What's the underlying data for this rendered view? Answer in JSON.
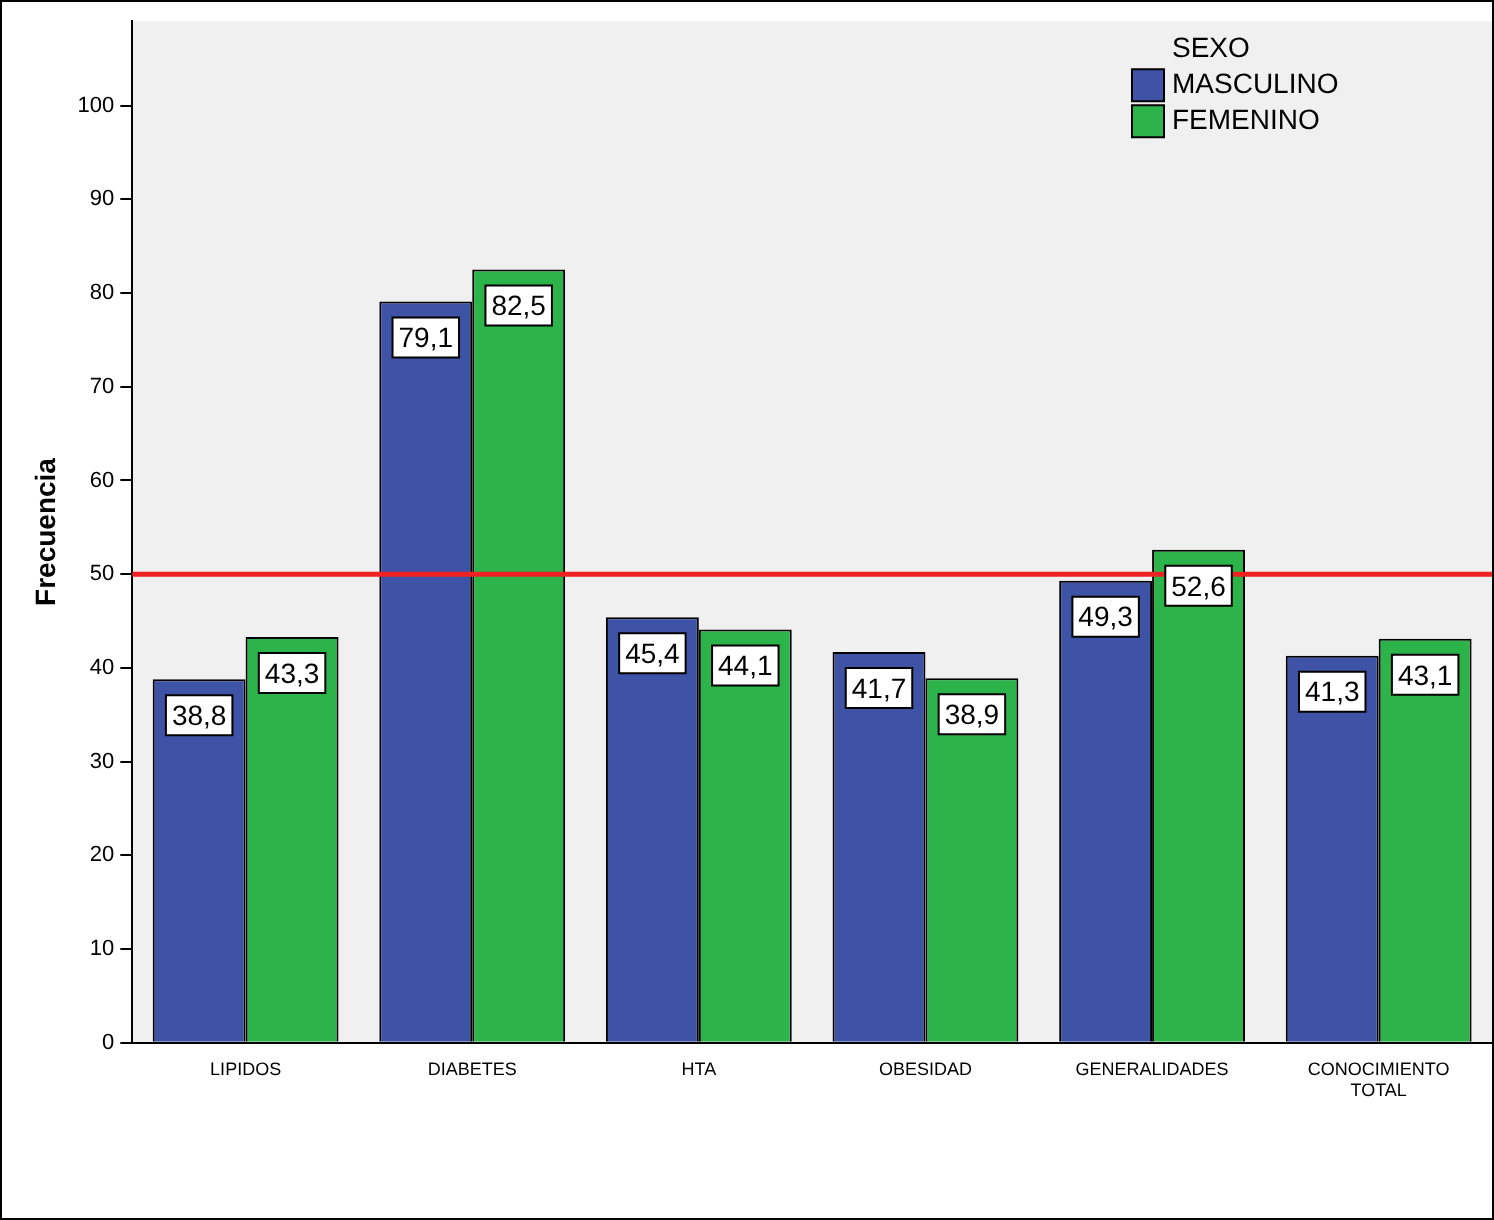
{
  "chart_data": {
    "type": "bar",
    "ylabel": "Frecuencia",
    "legend_title": "SEXO",
    "legend": "top right",
    "grid": false,
    "categories": [
      "LIPIDOS",
      "DIABETES",
      "HTA",
      "OBESIDAD",
      "GENERALIDADES",
      "CONOCIMIENTO TOTAL"
    ],
    "series": [
      {
        "name": "MASCULINO",
        "color": "#3e53a6",
        "values": [
          38.8,
          79.1,
          45.4,
          41.7,
          49.3,
          41.3
        ],
        "value_labels": [
          "38,8",
          "79,1",
          "45,4",
          "41,7",
          "49,3",
          "41,3"
        ]
      },
      {
        "name": "FEMENINO",
        "color": "#2cb34a",
        "values": [
          43.3,
          82.5,
          44.1,
          38.9,
          52.6,
          43.1
        ],
        "value_labels": [
          "43,3",
          "82,5",
          "44,1",
          "38,9",
          "52,6",
          "43,1"
        ]
      }
    ],
    "ylim": [
      0,
      109
    ],
    "yticks": [
      0,
      10,
      20,
      30,
      40,
      50,
      60,
      70,
      80,
      90,
      100
    ],
    "ref_lines": [
      {
        "axis": "y",
        "value": 50,
        "color": "#ee2222"
      }
    ]
  }
}
